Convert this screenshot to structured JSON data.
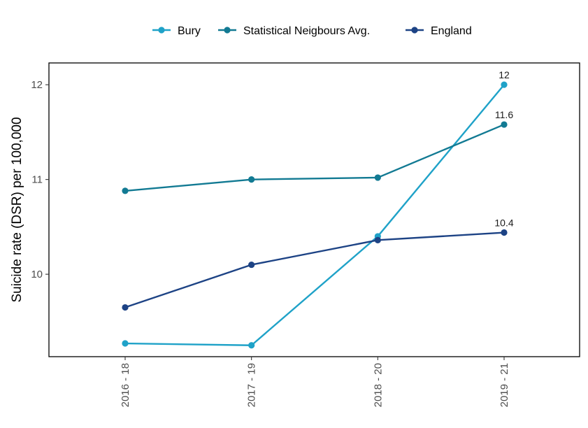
{
  "chart_data": {
    "type": "line",
    "categories": [
      "2016 - 18",
      "2017 - 19",
      "2018 - 20",
      "2019 - 21"
    ],
    "series": [
      {
        "name": "Bury",
        "color": "#1fa2c8",
        "values": [
          9.27,
          9.25,
          10.4,
          12.0
        ],
        "labels": [
          "",
          "",
          "",
          "12"
        ]
      },
      {
        "name": "Statistical Neigbours Avg.",
        "color": "#127a93",
        "values": [
          10.88,
          11.0,
          11.02,
          11.58
        ],
        "labels": [
          "",
          "",
          "",
          "11.6"
        ]
      },
      {
        "name": "England",
        "color": "#1d4385",
        "values": [
          9.65,
          10.1,
          10.36,
          10.44
        ],
        "labels": [
          "",
          "",
          "",
          "10.4"
        ]
      }
    ],
    "xlabel": "",
    "ylabel": "Suicide rate (DSR) per 100,000",
    "ylim": [
      9.13,
      12.23
    ],
    "yticks": [
      10,
      11,
      12
    ],
    "grid": false,
    "legend_position": "top"
  }
}
